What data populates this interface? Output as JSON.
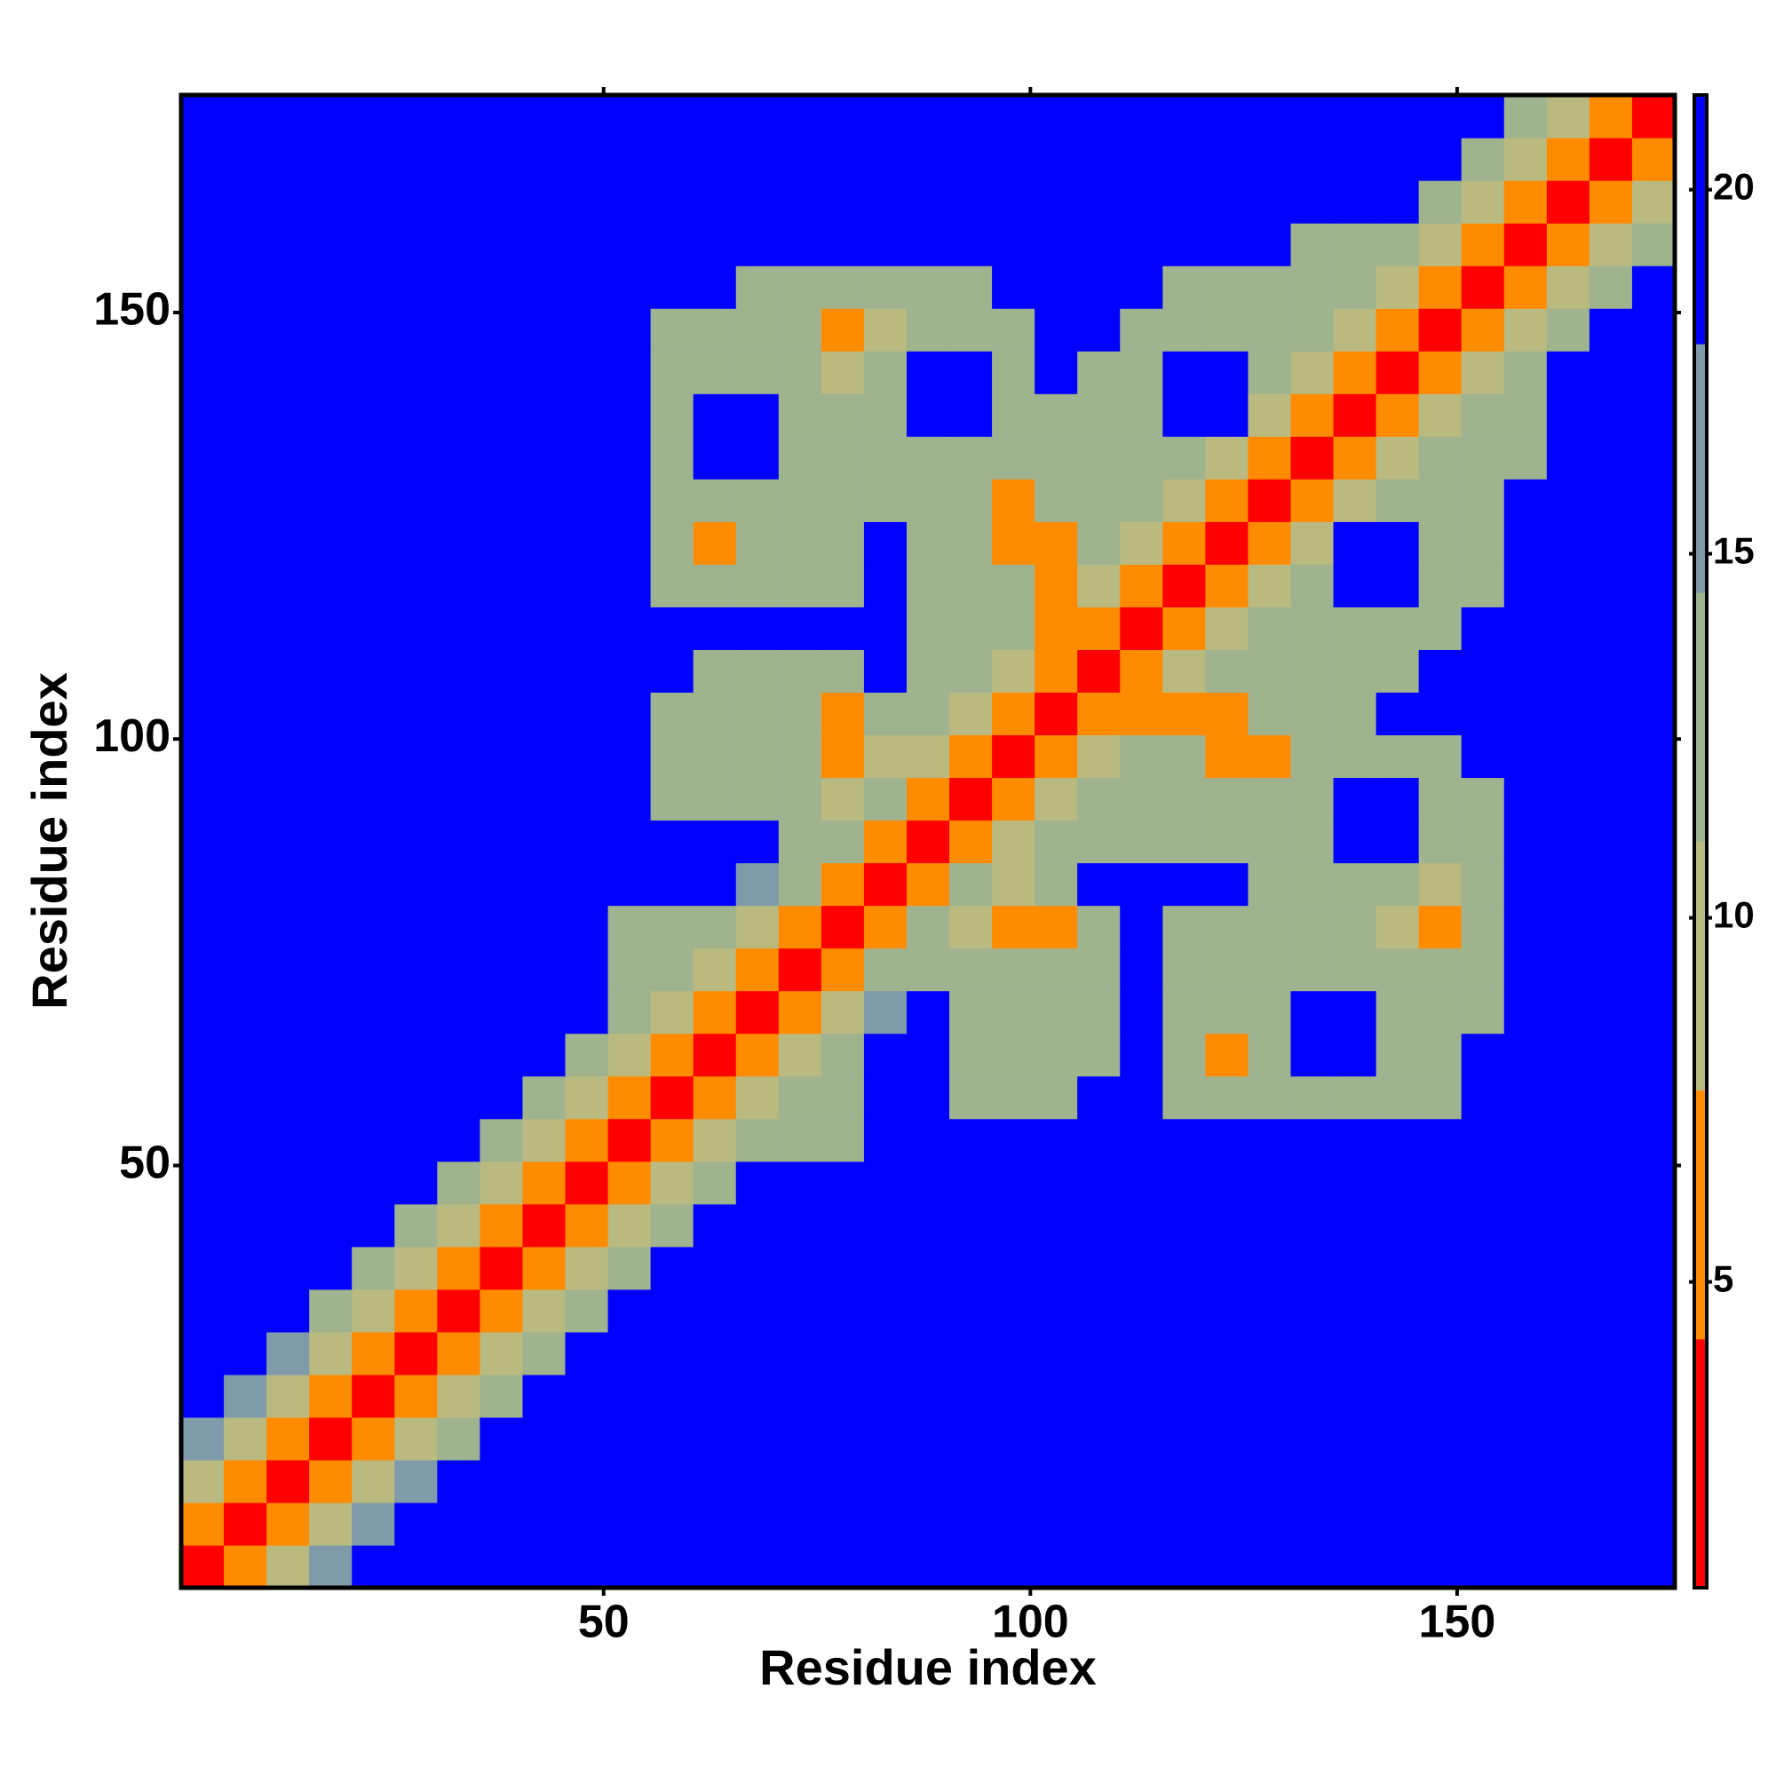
{
  "chart_data": {
    "type": "heatmap",
    "xlabel": "Residue index",
    "ylabel": "Residue index",
    "bins": [
      0.5,
      5.5,
      10.5,
      15.5,
      20.5,
      25.5,
      30.5,
      35.5,
      40.5,
      45.5,
      50.5,
      55.5,
      60.5,
      65.5,
      70.5,
      75.5,
      80.5,
      85.5,
      90.5,
      95.5,
      100.5,
      105.5,
      110.5,
      115.5,
      120.5,
      125.5,
      130.5,
      135.5,
      140.5,
      145.5,
      150.5,
      155.5,
      160.5,
      165.5,
      170.5,
      175.5
    ],
    "xlim": [
      0.5,
      175.5
    ],
    "ylim": [
      0.5,
      175.5
    ],
    "xticks": [
      50,
      100,
      150
    ],
    "yticks": [
      50,
      100,
      150
    ],
    "zlim": [
      0.8,
      21.3
    ],
    "zticks": [
      5,
      10,
      15,
      20
    ],
    "colors": [
      "#ff0000",
      "#ff8c00",
      "#b9b980",
      "#9fb38f",
      "#7f9aa8",
      "#0000ff"
    ],
    "values": [
      [
        2,
        7,
        11,
        17,
        21,
        21,
        21,
        21,
        21,
        21,
        21,
        21,
        21,
        21,
        21,
        21,
        21,
        21,
        21,
        21,
        21,
        21,
        21,
        21,
        21,
        21,
        21,
        21,
        21,
        21,
        21,
        21,
        21,
        21,
        21
      ],
      [
        7,
        2,
        7,
        11,
        17,
        21,
        21,
        21,
        21,
        21,
        21,
        21,
        21,
        21,
        21,
        21,
        21,
        21,
        21,
        21,
        21,
        21,
        21,
        21,
        21,
        21,
        21,
        21,
        21,
        21,
        21,
        21,
        21,
        21,
        21
      ],
      [
        11,
        7,
        2,
        7,
        11,
        17,
        21,
        21,
        21,
        21,
        21,
        21,
        21,
        21,
        21,
        21,
        21,
        21,
        21,
        21,
        21,
        21,
        21,
        21,
        21,
        21,
        21,
        21,
        21,
        21,
        21,
        21,
        21,
        21,
        21
      ],
      [
        17,
        11,
        7,
        2,
        7,
        11,
        13,
        21,
        21,
        21,
        21,
        21,
        21,
        21,
        21,
        21,
        21,
        21,
        21,
        21,
        21,
        21,
        21,
        21,
        21,
        21,
        21,
        21,
        21,
        21,
        21,
        21,
        21,
        21,
        21
      ],
      [
        21,
        17,
        11,
        7,
        2,
        7,
        11,
        13,
        21,
        21,
        21,
        21,
        21,
        21,
        21,
        21,
        21,
        21,
        21,
        21,
        21,
        21,
        21,
        21,
        21,
        21,
        21,
        21,
        21,
        21,
        21,
        21,
        21,
        21,
        21
      ],
      [
        21,
        21,
        17,
        11,
        7,
        2,
        7,
        11,
        13,
        21,
        21,
        21,
        21,
        21,
        21,
        21,
        21,
        21,
        21,
        21,
        21,
        21,
        21,
        21,
        21,
        21,
        21,
        21,
        21,
        21,
        21,
        21,
        21,
        21,
        21
      ],
      [
        21,
        21,
        21,
        13,
        11,
        7,
        2,
        7,
        11,
        13,
        21,
        21,
        21,
        21,
        21,
        21,
        21,
        21,
        21,
        21,
        21,
        21,
        21,
        21,
        21,
        21,
        21,
        21,
        21,
        21,
        21,
        21,
        21,
        21,
        21
      ],
      [
        21,
        21,
        21,
        21,
        13,
        11,
        7,
        2,
        7,
        11,
        13,
        21,
        21,
        21,
        21,
        21,
        21,
        21,
        21,
        21,
        21,
        21,
        21,
        21,
        21,
        21,
        21,
        21,
        21,
        21,
        21,
        21,
        21,
        21,
        21
      ],
      [
        21,
        21,
        21,
        21,
        21,
        13,
        11,
        7,
        2,
        7,
        11,
        13,
        21,
        21,
        21,
        21,
        21,
        21,
        21,
        21,
        21,
        21,
        21,
        21,
        21,
        21,
        21,
        21,
        21,
        21,
        21,
        21,
        21,
        21,
        21
      ],
      [
        21,
        21,
        21,
        21,
        21,
        21,
        13,
        11,
        7,
        2,
        7,
        11,
        13,
        21,
        21,
        21,
        21,
        21,
        21,
        21,
        21,
        21,
        21,
        21,
        21,
        21,
        21,
        21,
        21,
        21,
        21,
        21,
        21,
        21,
        21
      ],
      [
        21,
        21,
        21,
        21,
        21,
        21,
        21,
        13,
        11,
        7,
        2,
        7,
        11,
        13,
        14,
        14,
        21,
        21,
        21,
        21,
        21,
        21,
        21,
        21,
        21,
        21,
        21,
        21,
        21,
        21,
        21,
        21,
        21,
        21,
        21
      ],
      [
        21,
        21,
        21,
        21,
        21,
        21,
        21,
        21,
        13,
        11,
        7,
        2,
        7,
        11,
        13,
        13,
        21,
        21,
        13,
        12,
        13,
        21,
        21,
        14,
        12,
        12,
        12,
        12,
        12,
        14,
        21,
        21,
        21,
        21,
        21
      ],
      [
        21,
        21,
        21,
        21,
        21,
        21,
        21,
        21,
        21,
        13,
        11,
        7,
        2,
        7,
        11,
        13,
        21,
        21,
        12,
        12,
        12,
        14,
        21,
        12,
        7,
        12,
        21,
        21,
        12,
        12,
        21,
        21,
        21,
        21,
        21
      ],
      [
        21,
        21,
        21,
        21,
        21,
        21,
        21,
        21,
        21,
        21,
        13,
        11,
        7,
        2,
        7,
        11,
        15,
        21,
        12,
        12,
        12,
        13,
        21,
        12,
        12,
        13,
        21,
        21,
        13,
        12,
        14,
        21,
        21,
        21,
        21
      ],
      [
        21,
        21,
        21,
        21,
        21,
        21,
        21,
        21,
        21,
        21,
        14,
        13,
        11,
        7,
        2,
        7,
        13,
        12,
        12,
        12,
        12,
        13,
        21,
        12,
        12,
        12,
        12,
        12,
        12,
        12,
        12,
        21,
        21,
        21,
        21
      ],
      [
        21,
        21,
        21,
        21,
        21,
        21,
        21,
        21,
        21,
        21,
        14,
        13,
        13,
        11,
        7,
        2,
        7,
        12,
        8,
        7,
        7,
        13,
        21,
        12,
        12,
        12,
        12,
        12,
        8,
        7,
        12,
        21,
        21,
        21,
        21
      ],
      [
        21,
        21,
        21,
        21,
        21,
        21,
        21,
        21,
        21,
        21,
        21,
        21,
        21,
        15,
        13,
        7,
        2,
        7,
        12,
        8,
        12,
        21,
        21,
        21,
        21,
        14,
        14,
        13,
        12,
        8,
        13,
        21,
        21,
        21,
        21
      ],
      [
        21,
        21,
        21,
        21,
        21,
        21,
        21,
        21,
        21,
        21,
        21,
        21,
        21,
        21,
        12,
        12,
        7,
        2,
        7,
        11,
        12,
        14,
        13,
        13,
        12,
        12,
        12,
        21,
        21,
        13,
        14,
        21,
        21,
        21,
        21
      ],
      [
        21,
        21,
        21,
        21,
        21,
        21,
        21,
        21,
        21,
        21,
        21,
        13,
        12,
        12,
        12,
        8,
        12,
        7,
        2,
        7,
        11,
        12,
        12,
        12,
        12,
        12,
        12,
        21,
        21,
        12,
        14,
        21,
        21,
        21,
        21
      ],
      [
        21,
        21,
        21,
        21,
        21,
        21,
        21,
        21,
        21,
        21,
        21,
        12,
        12,
        12,
        12,
        7,
        8,
        11,
        7,
        2,
        7,
        11,
        12,
        12,
        7,
        7,
        12,
        12,
        12,
        12,
        21,
        21,
        21,
        21,
        21
      ],
      [
        21,
        21,
        21,
        21,
        21,
        21,
        21,
        21,
        21,
        21,
        21,
        13,
        12,
        12,
        12,
        7,
        12,
        12,
        11,
        7,
        2,
        7,
        7,
        7,
        7,
        12,
        14,
        14,
        21,
        21,
        21,
        21,
        21,
        21,
        21
      ],
      [
        21,
        21,
        21,
        21,
        21,
        21,
        21,
        21,
        21,
        21,
        21,
        21,
        14,
        13,
        13,
        13,
        21,
        14,
        12,
        11,
        7,
        2,
        7,
        11,
        12,
        13,
        14,
        13,
        13,
        21,
        21,
        21,
        21,
        21,
        21
      ],
      [
        21,
        21,
        21,
        21,
        21,
        21,
        21,
        21,
        21,
        21,
        21,
        21,
        21,
        21,
        21,
        21,
        21,
        13,
        12,
        12,
        7,
        7,
        2,
        7,
        11,
        12,
        12,
        13,
        12,
        14,
        21,
        21,
        21,
        21,
        21
      ],
      [
        21,
        21,
        21,
        21,
        21,
        21,
        21,
        21,
        21,
        21,
        21,
        14,
        12,
        12,
        12,
        12,
        21,
        13,
        12,
        12,
        7,
        11,
        7,
        2,
        7,
        11,
        12,
        21,
        21,
        12,
        14,
        21,
        21,
        21,
        21
      ],
      [
        21,
        21,
        21,
        21,
        21,
        21,
        21,
        21,
        21,
        21,
        21,
        12,
        7,
        12,
        12,
        12,
        21,
        12,
        12,
        7,
        7,
        12,
        11,
        7,
        2,
        7,
        11,
        21,
        21,
        12,
        13,
        21,
        21,
        21,
        21
      ],
      [
        21,
        21,
        21,
        21,
        21,
        21,
        21,
        21,
        21,
        21,
        21,
        12,
        12,
        13,
        12,
        12,
        14,
        12,
        12,
        7,
        12,
        13,
        12,
        11,
        7,
        2,
        7,
        11,
        12,
        13,
        12,
        21,
        21,
        21,
        21
      ],
      [
        21,
        21,
        21,
        21,
        21,
        21,
        21,
        21,
        21,
        21,
        21,
        12,
        21,
        21,
        12,
        12,
        14,
        12,
        12,
        12,
        14,
        14,
        12,
        12,
        11,
        7,
        2,
        7,
        11,
        12,
        12,
        14,
        21,
        21,
        21
      ],
      [
        21,
        21,
        21,
        21,
        21,
        21,
        21,
        21,
        21,
        21,
        21,
        12,
        21,
        21,
        12,
        12,
        13,
        21,
        21,
        12,
        14,
        13,
        13,
        21,
        21,
        11,
        7,
        2,
        7,
        11,
        12,
        14,
        21,
        21,
        21
      ],
      [
        21,
        21,
        21,
        21,
        21,
        21,
        21,
        21,
        21,
        21,
        21,
        12,
        12,
        13,
        12,
        8,
        12,
        21,
        21,
        12,
        21,
        13,
        12,
        21,
        21,
        12,
        11,
        7,
        2,
        7,
        11,
        13,
        21,
        21,
        21
      ],
      [
        21,
        21,
        21,
        21,
        21,
        21,
        21,
        21,
        21,
        21,
        21,
        14,
        12,
        12,
        12,
        7,
        8,
        13,
        12,
        12,
        21,
        21,
        14,
        12,
        12,
        13,
        12,
        11,
        7,
        2,
        7,
        11,
        13,
        21,
        21
      ],
      [
        21,
        21,
        21,
        21,
        21,
        21,
        21,
        21,
        21,
        21,
        21,
        21,
        21,
        14,
        12,
        12,
        13,
        14,
        14,
        21,
        21,
        21,
        21,
        14,
        13,
        12,
        12,
        12,
        11,
        7,
        2,
        7,
        11,
        13,
        21
      ],
      [
        21,
        21,
        21,
        21,
        21,
        21,
        21,
        21,
        21,
        21,
        21,
        21,
        21,
        21,
        21,
        21,
        21,
        21,
        21,
        21,
        21,
        21,
        21,
        21,
        21,
        21,
        14,
        14,
        13,
        11,
        7,
        2,
        7,
        11,
        13
      ],
      [
        21,
        21,
        21,
        21,
        21,
        21,
        21,
        21,
        21,
        21,
        21,
        21,
        21,
        21,
        21,
        21,
        21,
        21,
        21,
        21,
        21,
        21,
        21,
        21,
        21,
        21,
        21,
        21,
        21,
        13,
        11,
        7,
        2,
        7,
        11
      ],
      [
        21,
        21,
        21,
        21,
        21,
        21,
        21,
        21,
        21,
        21,
        21,
        21,
        21,
        21,
        21,
        21,
        21,
        21,
        21,
        21,
        21,
        21,
        21,
        21,
        21,
        21,
        21,
        21,
        21,
        21,
        13,
        11,
        7,
        2,
        7
      ],
      [
        21,
        21,
        21,
        21,
        21,
        21,
        21,
        21,
        21,
        21,
        21,
        21,
        21,
        21,
        21,
        21,
        21,
        21,
        21,
        21,
        21,
        21,
        21,
        21,
        21,
        21,
        21,
        21,
        21,
        21,
        21,
        13,
        11,
        7,
        2
      ]
    ]
  }
}
